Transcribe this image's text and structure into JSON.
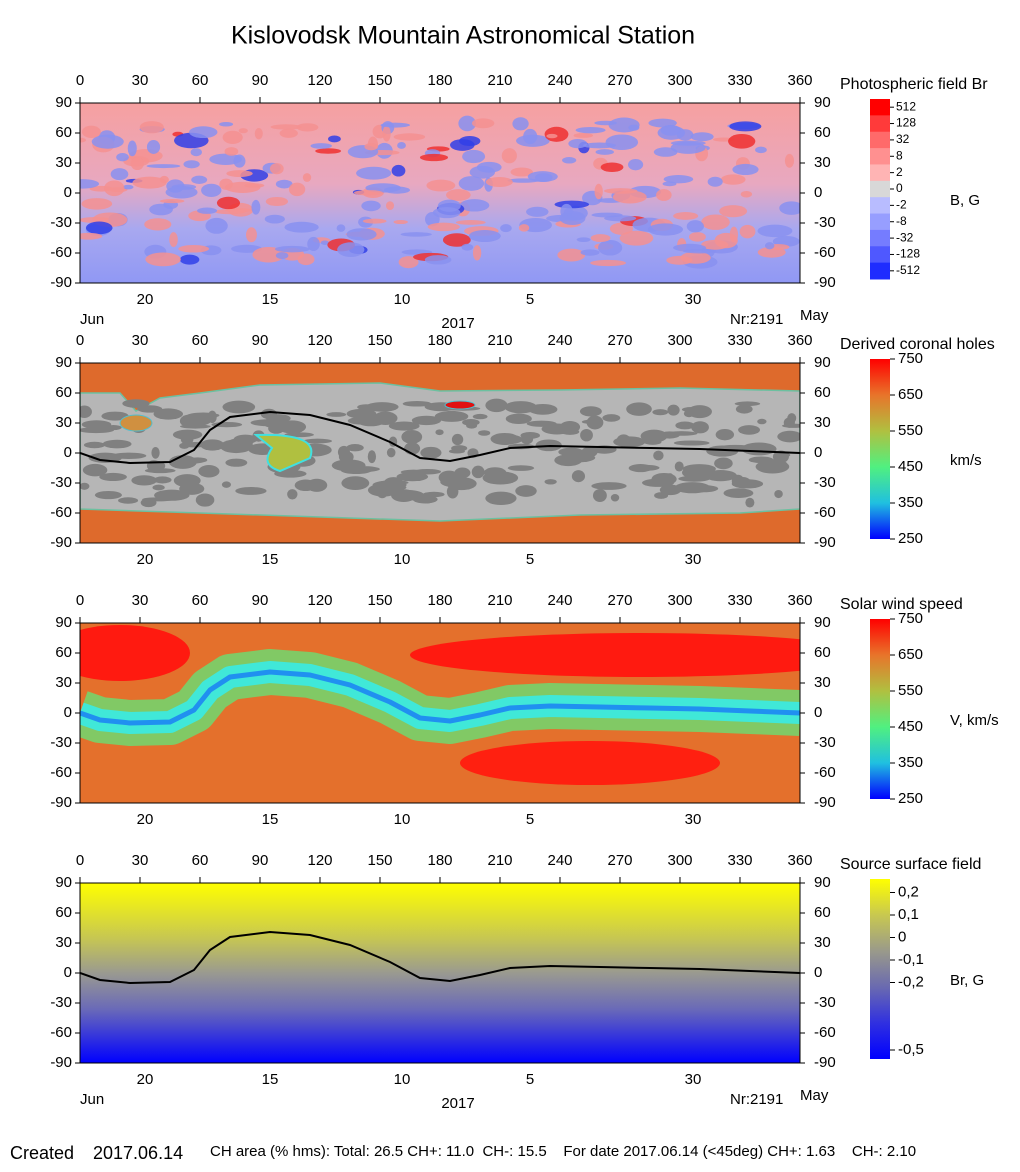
{
  "title": "Kislovodsk Mountain Astronomical Station",
  "footer": {
    "created": "Created",
    "date": "2017.06.14",
    "stats": "CH area (% hms): Total: 26.5 CH+: 11.0  CH-: 15.5    For date 2017.06.14 (<45deg) CH+: 1.63    CH-: 2.10"
  },
  "chart_data": [
    {
      "type": "map",
      "title": "Photospheric field Br",
      "xlim": [
        0,
        360
      ],
      "xticks": [
        0,
        30,
        60,
        90,
        120,
        150,
        180,
        210,
        240,
        270,
        300,
        330,
        360
      ],
      "ylim": [
        -90,
        90
      ],
      "yticks": [
        90,
        60,
        30,
        0,
        -30,
        -60,
        -90
      ],
      "date_ticks": [
        {
          "value": 32.5,
          "label": "20"
        },
        {
          "value": 95,
          "label": "15"
        },
        {
          "value": 161,
          "label": "10"
        },
        {
          "value": 225,
          "label": "5"
        },
        {
          "value": 306.5,
          "label": "30"
        }
      ],
      "footnotes": {
        "start": "Jun",
        "year": "2017",
        "rotation": "Nr:2191",
        "end": "May"
      },
      "colorbar": {
        "label": "B, G",
        "scale": "bins",
        "ticks": [
          512,
          128,
          32,
          8,
          2,
          0,
          -2,
          -8,
          -32,
          -128,
          -512
        ],
        "colors": [
          "#ff0000",
          "#ff3a3a",
          "#ff6a6a",
          "#ff9090",
          "#ffb4b4",
          "#d8d8d8",
          "#b8bcff",
          "#979eff",
          "#757cff",
          "#4f58ff",
          "#1e2cff"
        ]
      }
    },
    {
      "type": "map",
      "title": "Derived coronal holes",
      "xlim": [
        0,
        360
      ],
      "xticks": [
        0,
        30,
        60,
        90,
        120,
        150,
        180,
        210,
        240,
        270,
        300,
        330,
        360
      ],
      "ylim": [
        -90,
        90
      ],
      "yticks": [
        90,
        60,
        30,
        0,
        -30,
        -60,
        -90
      ],
      "date_ticks": [
        {
          "value": 32.5,
          "label": "20"
        },
        {
          "value": 95,
          "label": "15"
        },
        {
          "value": 161,
          "label": "10"
        },
        {
          "value": 225,
          "label": "5"
        },
        {
          "value": 306.5,
          "label": "30"
        }
      ],
      "colorbar": {
        "label": "km/s",
        "scale": "linear",
        "clim": [
          250,
          750
        ],
        "ticks": [
          750,
          650,
          550,
          450,
          350,
          250
        ],
        "colors": [
          "#ff0000",
          "#e8742a",
          "#b0c040",
          "#50f080",
          "#20c0e0",
          "#0000ff"
        ]
      },
      "series": [
        {
          "color": "#000000",
          "x": [
            0,
            10,
            25,
            45,
            57,
            65,
            75,
            95,
            115,
            135,
            155,
            170,
            185,
            200,
            215,
            235,
            260,
            285,
            310,
            335,
            360
          ],
          "values": [
            0,
            -7,
            -10,
            -9,
            3,
            23,
            36,
            41,
            38,
            28,
            11,
            -5,
            -8,
            -2,
            5,
            7,
            6,
            5,
            4,
            2,
            0
          ]
        }
      ]
    },
    {
      "type": "map",
      "title": "Solar wind speed",
      "xlim": [
        0,
        360
      ],
      "xticks": [
        0,
        30,
        60,
        90,
        120,
        150,
        180,
        210,
        240,
        270,
        300,
        330,
        360
      ],
      "ylim": [
        -90,
        90
      ],
      "yticks": [
        90,
        60,
        30,
        0,
        -30,
        -60,
        -90
      ],
      "date_ticks": [
        {
          "value": 32.5,
          "label": "20"
        },
        {
          "value": 95,
          "label": "15"
        },
        {
          "value": 161,
          "label": "10"
        },
        {
          "value": 225,
          "label": "5"
        },
        {
          "value": 306.5,
          "label": "30"
        }
      ],
      "colorbar": {
        "label": "V, km/s",
        "scale": "linear",
        "clim": [
          250,
          750
        ],
        "ticks": [
          750,
          650,
          550,
          450,
          350,
          250
        ],
        "colors": [
          "#ff0000",
          "#e8742a",
          "#b0c040",
          "#50f080",
          "#20c0e0",
          "#0000ff"
        ]
      }
    },
    {
      "type": "map",
      "title": "Source surface field",
      "xlim": [
        0,
        360
      ],
      "xticks": [
        0,
        30,
        60,
        90,
        120,
        150,
        180,
        210,
        240,
        270,
        300,
        330,
        360
      ],
      "ylim": [
        -90,
        90
      ],
      "yticks": [
        90,
        60,
        30,
        0,
        -30,
        -60,
        -90
      ],
      "date_ticks": [
        {
          "value": 32.5,
          "label": "20"
        },
        {
          "value": 95,
          "label": "15"
        },
        {
          "value": 161,
          "label": "10"
        },
        {
          "value": 225,
          "label": "5"
        },
        {
          "value": 306.5,
          "label": "30"
        }
      ],
      "footnotes": {
        "start": "Jun",
        "year": "2017",
        "rotation": "Nr:2191",
        "end": "May"
      },
      "colorbar": {
        "label": "Br, G",
        "scale": "linear",
        "clim": [
          -0.54,
          0.26
        ],
        "ticks": [
          {
            "value": 0.2,
            "label": "0,2"
          },
          {
            "value": 0.1,
            "label": "0,1"
          },
          0,
          {
            "value": -0.1,
            "label": "-0,1"
          },
          {
            "value": -0.2,
            "label": "-0,2"
          },
          {
            "value": -0.5,
            "label": "-0,5"
          }
        ],
        "colors": [
          "#ffff00",
          "#c8c850",
          "#9a9a8a",
          "#6a6ab0",
          "#3030e0",
          "#0000ff"
        ]
      },
      "series": [
        {
          "color": "#000000",
          "x": [
            0,
            10,
            25,
            45,
            57,
            65,
            75,
            95,
            115,
            135,
            155,
            170,
            185,
            200,
            215,
            235,
            260,
            285,
            310,
            335,
            360
          ],
          "values": [
            0,
            -7,
            -10,
            -9,
            3,
            23,
            36,
            41,
            38,
            28,
            11,
            -5,
            -8,
            -2,
            5,
            7,
            6,
            5,
            4,
            2,
            0
          ]
        }
      ]
    }
  ]
}
